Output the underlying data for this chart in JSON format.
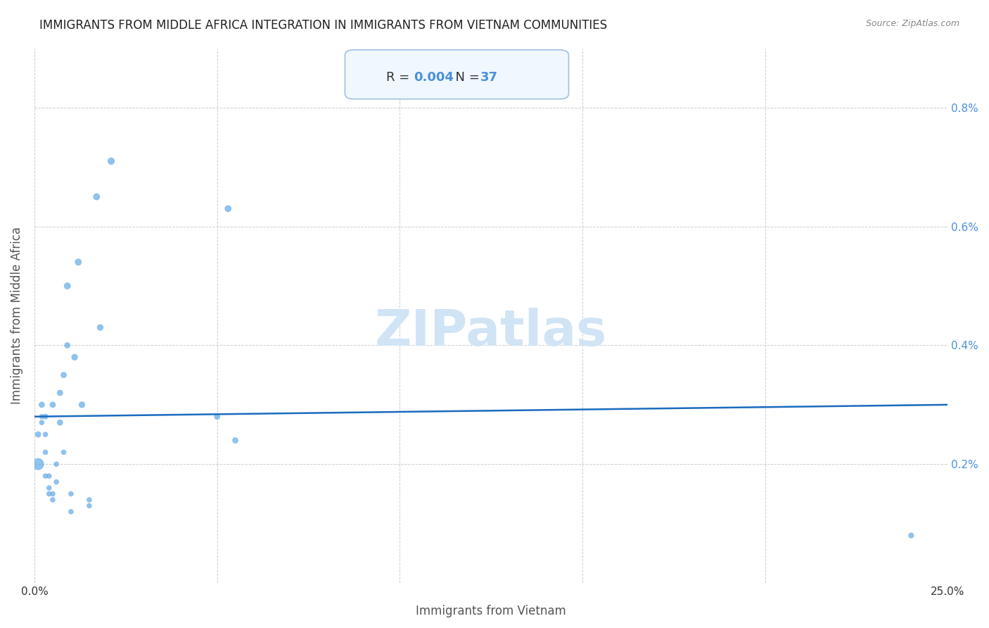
{
  "title": "IMMIGRANTS FROM MIDDLE AFRICA INTEGRATION IN IMMIGRANTS FROM VIETNAM COMMUNITIES",
  "source": "Source: ZipAtlas.com",
  "xlabel": "Immigrants from Vietnam",
  "ylabel": "Immigrants from Middle Africa",
  "R": "0.004",
  "N": "37",
  "xlim": [
    0,
    0.25
  ],
  "ylim": [
    0,
    0.009
  ],
  "xticks": [
    0,
    0.05,
    0.1,
    0.15,
    0.2,
    0.25
  ],
  "xticklabels": [
    "0.0%",
    "",
    "",
    "",
    "",
    "25.0%"
  ],
  "yticks": [
    0,
    0.002,
    0.004,
    0.006,
    0.008
  ],
  "yticklabels": [
    "",
    "0.2%",
    "0.4%",
    "0.6%",
    "0.8%"
  ],
  "dot_color": "#6aaee8",
  "trend_line_color": "#1a6bbf",
  "watermark": "ZIPatlas",
  "watermark_color": "#d0e4f5",
  "background_color": "#ffffff",
  "title_color": "#222222",
  "title_fontsize": 12,
  "axis_label_color": "#555555",
  "tick_color_right": "#4a90d9",
  "grid_color": "#cccccc",
  "annotation_box_color": "#f0f7ff",
  "annotation_border_color": "#a0c0e0",
  "scatter_x": [
    0.001,
    0.001,
    0.002,
    0.002,
    0.002,
    0.003,
    0.003,
    0.003,
    0.003,
    0.004,
    0.004,
    0.004,
    0.005,
    0.005,
    0.005,
    0.006,
    0.006,
    0.007,
    0.007,
    0.008,
    0.008,
    0.009,
    0.009,
    0.01,
    0.01,
    0.011,
    0.012,
    0.013,
    0.015,
    0.015,
    0.017,
    0.018,
    0.021,
    0.05,
    0.053,
    0.055,
    0.24
  ],
  "scatter_y": [
    0.002,
    0.0025,
    0.0027,
    0.0028,
    0.003,
    0.0018,
    0.0022,
    0.0025,
    0.0028,
    0.0015,
    0.0016,
    0.0018,
    0.0014,
    0.0015,
    0.003,
    0.0017,
    0.002,
    0.0027,
    0.0032,
    0.0022,
    0.0035,
    0.004,
    0.005,
    0.0012,
    0.0015,
    0.0038,
    0.0054,
    0.003,
    0.0013,
    0.0014,
    0.0065,
    0.0043,
    0.0071,
    0.0028,
    0.0063,
    0.0024,
    0.0008
  ],
  "scatter_sizes": [
    150,
    40,
    30,
    30,
    40,
    30,
    30,
    30,
    35,
    30,
    30,
    30,
    30,
    30,
    40,
    30,
    30,
    40,
    40,
    30,
    40,
    40,
    50,
    30,
    30,
    45,
    50,
    45,
    30,
    30,
    50,
    45,
    55,
    40,
    50,
    40,
    35
  ],
  "trend_x": [
    0,
    0.25
  ],
  "trend_y": [
    0.0028,
    0.003
  ]
}
